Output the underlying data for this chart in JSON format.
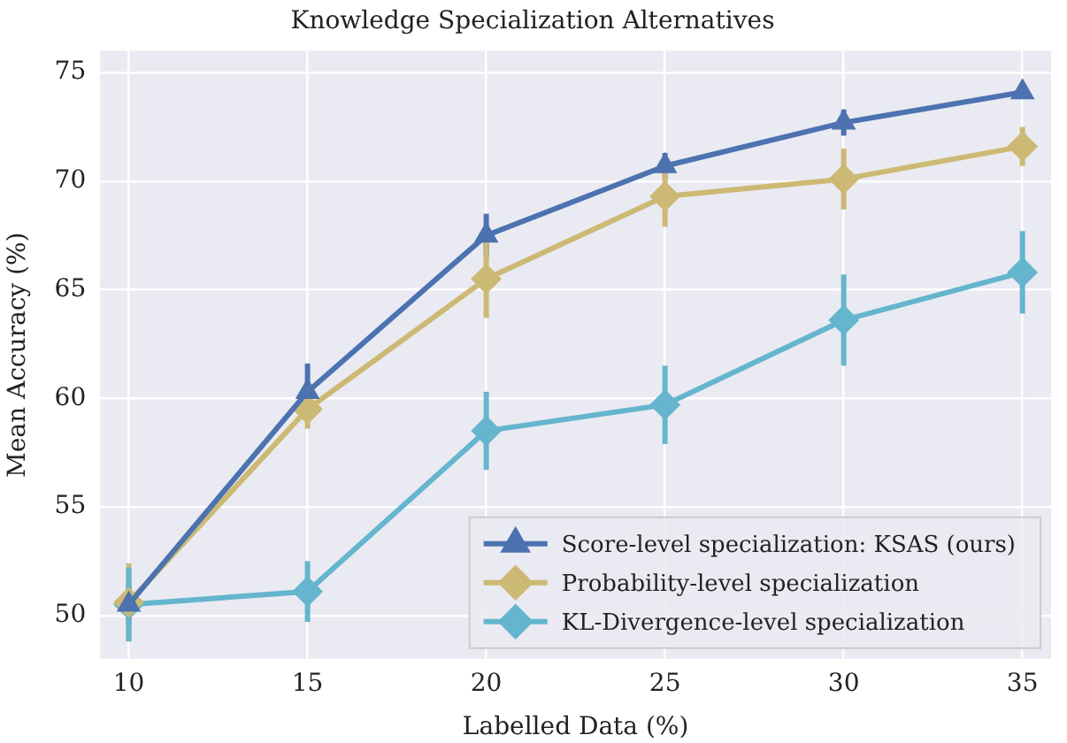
{
  "chart_data": {
    "type": "line",
    "title": "Knowledge Specialization Alternatives",
    "xlabel": "Labelled Data (%)",
    "ylabel": "Mean Accuracy (%)",
    "x": [
      10,
      15,
      20,
      25,
      30,
      35
    ],
    "series": [
      {
        "name": "Score-level specialization: KSAS (ours)",
        "color": "#4c72b0",
        "marker": "triangle",
        "values": [
          50.5,
          60.3,
          67.5,
          70.7,
          72.7,
          74.1
        ],
        "errors": [
          1.0,
          1.3,
          1.0,
          0.6,
          0.6,
          0.3
        ]
      },
      {
        "name": "Probability-level specialization",
        "color": "#ccb974",
        "marker": "diamond",
        "values": [
          50.6,
          59.5,
          65.5,
          69.3,
          70.1,
          71.6
        ],
        "errors": [
          1.8,
          0.9,
          1.8,
          1.4,
          1.4,
          0.9
        ]
      },
      {
        "name": "KL-Divergence-level specialization",
        "color": "#64b5cd",
        "marker": "diamond",
        "values": [
          50.5,
          51.1,
          58.5,
          59.7,
          63.6,
          65.8
        ],
        "errors": [
          1.7,
          1.4,
          1.8,
          1.8,
          2.1,
          1.9
        ]
      }
    ],
    "xlim": [
      9.2,
      35.8
    ],
    "xticks": [
      10,
      15,
      20,
      25,
      30,
      35
    ],
    "ylim": [
      48,
      76
    ],
    "yticks": [
      50,
      55,
      60,
      65,
      70,
      75
    ],
    "grid": true,
    "legend": "bottom right",
    "line_style": "solid"
  }
}
